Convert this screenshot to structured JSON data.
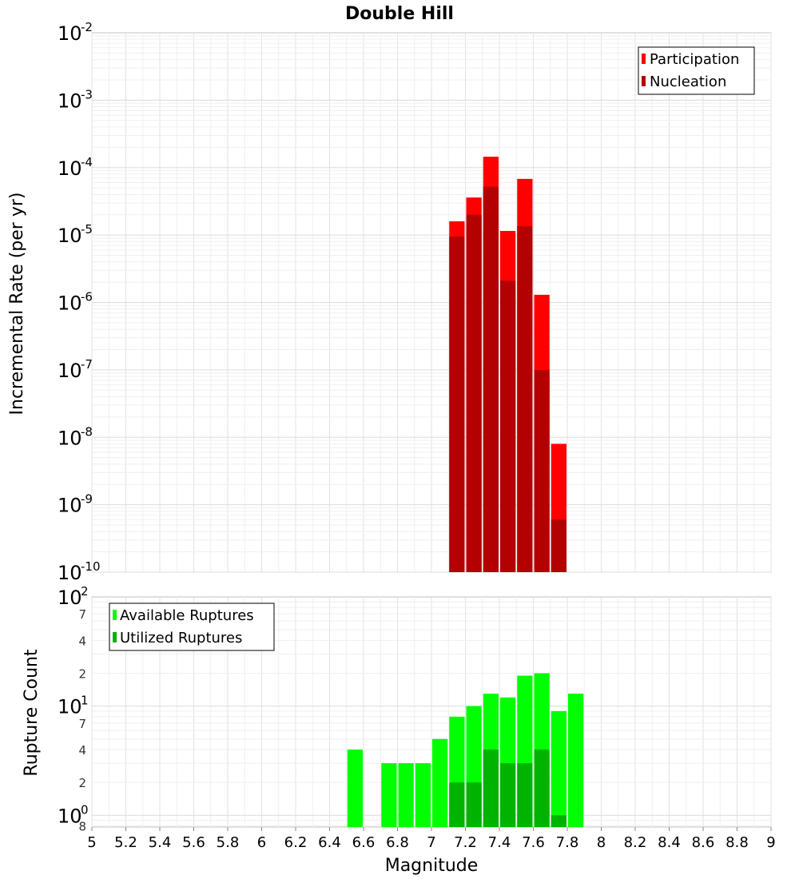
{
  "chart_data": [
    {
      "type": "bar",
      "title": "Double Hill",
      "ylabel": "Incremental Rate (per yr)",
      "xlabel": "",
      "yscale": "log",
      "xlim": [
        5,
        9
      ],
      "ylim": [
        1e-10,
        0.01
      ],
      "bin_width": 0.1,
      "grid": true,
      "legend_position": "top-right",
      "y_ticks": [
        {
          "base": "10",
          "exp": "-2",
          "value": 0.01
        },
        {
          "base": "10",
          "exp": "-3",
          "value": 0.001
        },
        {
          "base": "10",
          "exp": "-4",
          "value": 0.0001
        },
        {
          "base": "10",
          "exp": "-5",
          "value": 1e-05
        },
        {
          "base": "10",
          "exp": "-6",
          "value": 1e-06
        },
        {
          "base": "10",
          "exp": "-7",
          "value": 1e-07
        },
        {
          "base": "10",
          "exp": "-8",
          "value": 1e-08
        },
        {
          "base": "10",
          "exp": "-9",
          "value": 1e-09
        },
        {
          "base": "10",
          "exp": "-10",
          "value": 1e-10
        }
      ],
      "series": [
        {
          "name": "Participation",
          "color": "#ff0000",
          "x": [
            7.15,
            7.25,
            7.35,
            7.45,
            7.55,
            7.65,
            7.75
          ],
          "values": [
            1.6e-05,
            3.6e-05,
            0.000145,
            1.15e-05,
            6.8e-05,
            1.3e-06,
            8e-09
          ]
        },
        {
          "name": "Nucleation",
          "color": "#b30000",
          "x": [
            7.15,
            7.25,
            7.35,
            7.45,
            7.55,
            7.65,
            7.75
          ],
          "values": [
            9.5e-06,
            2e-05,
            5.2e-05,
            2.1e-06,
            1.35e-05,
            1e-07,
            6e-10
          ]
        }
      ]
    },
    {
      "type": "bar",
      "title": "",
      "ylabel": "Rupture Count",
      "xlabel": "Magnitude",
      "yscale": "log",
      "xlim": [
        5,
        9
      ],
      "ylim": [
        0.78,
        100
      ],
      "bin_width": 0.1,
      "grid": true,
      "legend_position": "top-left",
      "x_ticks": [
        "5",
        "5.2",
        "5.4",
        "5.6",
        "5.8",
        "6",
        "6.2",
        "6.4",
        "6.6",
        "6.8",
        "7",
        "7.2",
        "7.4",
        "7.6",
        "7.8",
        "8",
        "8.2",
        "8.4",
        "8.6",
        "8.8",
        "9"
      ],
      "y_major_ticks": [
        {
          "base": "10",
          "exp": "2",
          "value": 100
        },
        {
          "base": "10",
          "exp": "1",
          "value": 10
        },
        {
          "base": "10",
          "exp": "0",
          "value": 1
        }
      ],
      "y_minor_ticks": [
        {
          "label": "7",
          "value": 70
        },
        {
          "label": "4",
          "value": 40
        },
        {
          "label": "2",
          "value": 20
        },
        {
          "label": "7",
          "value": 7
        },
        {
          "label": "4",
          "value": 4
        },
        {
          "label": "2",
          "value": 2
        },
        {
          "label": "8",
          "value": 0.8
        }
      ],
      "series": [
        {
          "name": "Available Ruptures",
          "color": "#00ff00",
          "x": [
            6.55,
            6.75,
            6.85,
            6.95,
            7.05,
            7.15,
            7.25,
            7.35,
            7.45,
            7.55,
            7.65,
            7.75,
            7.85
          ],
          "values": [
            4,
            3,
            3,
            3,
            5,
            8,
            10,
            13,
            12,
            19,
            20,
            9,
            13
          ]
        },
        {
          "name": "Utilized Ruptures",
          "color": "#00b300",
          "x": [
            7.15,
            7.25,
            7.35,
            7.45,
            7.55,
            7.65,
            7.75
          ],
          "values": [
            2,
            2,
            4,
            3,
            3,
            4,
            1
          ]
        }
      ]
    }
  ]
}
